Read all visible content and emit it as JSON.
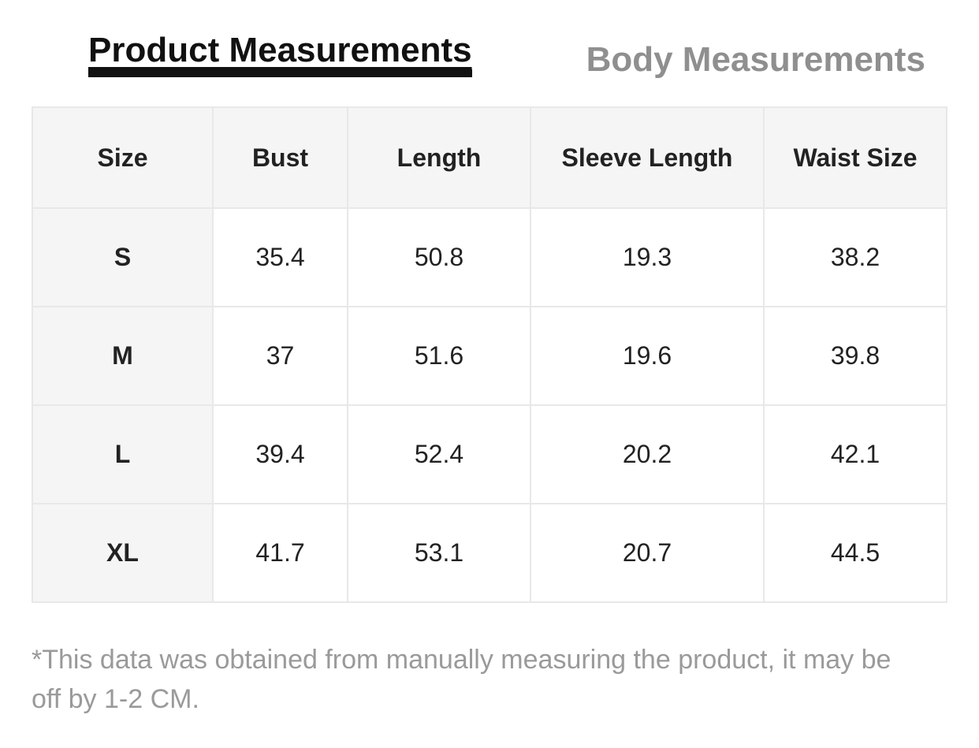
{
  "tabs": [
    {
      "label": "Product Measurements",
      "active": true
    },
    {
      "label": "Body Measurements",
      "active": false
    }
  ],
  "table": {
    "columns": [
      "Size",
      "Bust",
      "Length",
      "Sleeve Length",
      "Waist Size"
    ],
    "rows": [
      [
        "S",
        "35.4",
        "50.8",
        "19.3",
        "38.2"
      ],
      [
        "M",
        "37",
        "51.6",
        "19.6",
        "39.8"
      ],
      [
        "L",
        "39.4",
        "52.4",
        "20.2",
        "42.1"
      ],
      [
        "XL",
        "41.7",
        "53.1",
        "20.7",
        "44.5"
      ]
    ]
  },
  "note": {
    "line1": "*This data was obtained from manually measuring the product, it may be",
    "line2": "off by 1-2 CM."
  },
  "colors": {
    "active_tab_text": "#111111",
    "active_tab_underline": "#111111",
    "inactive_tab_text": "#8f8f8f",
    "table_header_bg": "#f5f5f5",
    "table_border": "#e8e8e8",
    "table_text": "#222222",
    "note_text": "#9a9a9a",
    "page_bg": "#ffffff"
  }
}
